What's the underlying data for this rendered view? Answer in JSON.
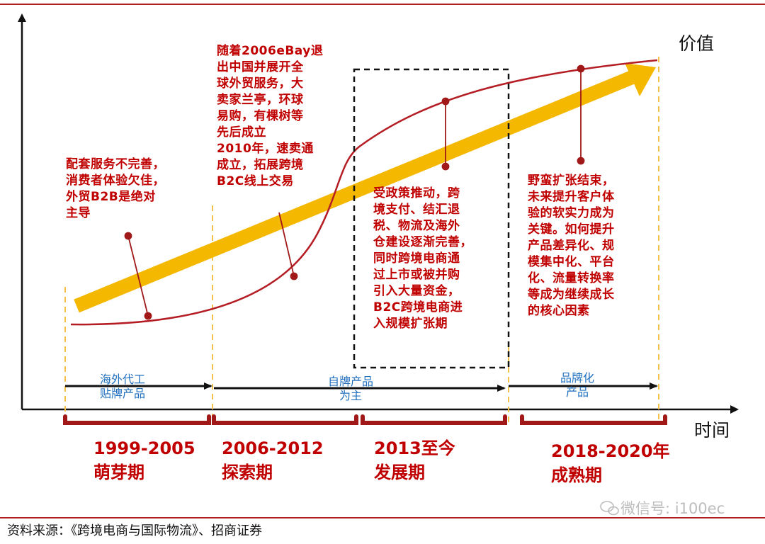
{
  "axes": {
    "y_label": "价值",
    "x_label": "时间"
  },
  "notes": {
    "budding": "配套服务不完善，\n消费者体验欠佳，\n外贸B2B是绝对\n主导",
    "exploring": "随着2006eBay退\n出中国并展开全\n球外贸服务，大\n卖家兰亭，环球\n易购，有棵树等\n先后成立\n2010年，速卖通\n成立，拓展跨境\nB2C线上交易",
    "developing": "受政策推动，跨\n境支付、结汇退\n税、物流及海外\n仓建设逐渐完善，\n同时跨境电商通\n过上市或被并购\n引入大量资金，\nB2C跨境电商进\n入规模扩张期",
    "mature": "野蛮扩张结束，\n未来提升客户体\n验的软实力成为\n关键。如何提升\n产品差异化、规\n模集中化、平台\n化、流量转换率\n等成为继续成长\n的核心因素"
  },
  "product_stages": {
    "oem": "海外代工\n贴牌产品",
    "own_brand": "自牌产品\n为主",
    "branded": "品牌化\n产品"
  },
  "periods": {
    "p1": "1999-2005\n萌芽期",
    "p2": "2006-2012\n探索期",
    "p3": "2013至今\n发展期",
    "p4": "2018-2020年\n成熟期"
  },
  "source": "资料来源：《跨境电商与国际物流》、招商证券",
  "watermark": "微信号: i100ec",
  "colors": {
    "accent_red": "#c00000",
    "arrow_yellow": "#f5b800",
    "label_blue": "#1f6fbf",
    "guide_yellow": "#f2c24a"
  }
}
